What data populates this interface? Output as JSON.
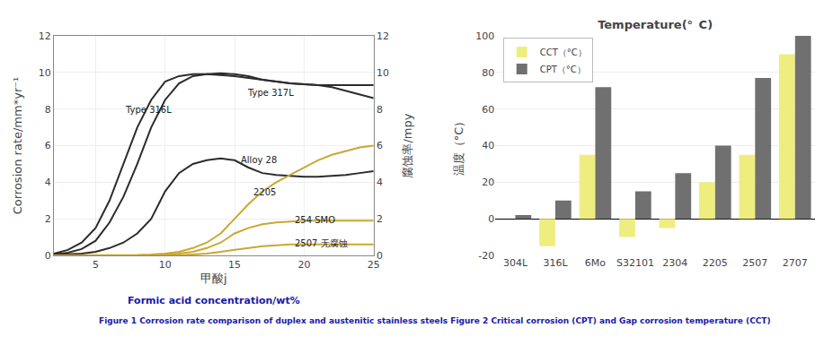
{
  "chart_data": [
    {
      "type": "line",
      "xlabel": "甲酸j",
      "caption": "Formic acid concentration/wt%",
      "ylabel": "Corrosion rate/mm*yr⁻¹",
      "y2label": "腐蚀率/mpy",
      "x": [
        2,
        3,
        4,
        5,
        6,
        7,
        8,
        9,
        10,
        11,
        12,
        13,
        14,
        15,
        16,
        17,
        18,
        19,
        20,
        21,
        22,
        23,
        24,
        25
      ],
      "xlim": [
        2,
        25
      ],
      "xticks": [
        5,
        10,
        15,
        20,
        25
      ],
      "ylim": [
        0,
        12
      ],
      "yticks": [
        0,
        2,
        4,
        6,
        8,
        10,
        12
      ],
      "y2lim": [
        0,
        12
      ],
      "y2ticks": [
        0,
        2,
        4,
        6,
        8,
        10,
        12
      ],
      "grid": true,
      "series": [
        {
          "color": "#2c2c2c",
          "values": [
            0.1,
            0.3,
            0.7,
            1.5,
            3.0,
            5.0,
            7.0,
            8.5,
            9.5,
            9.8,
            9.9,
            9.9,
            9.85,
            9.8,
            9.7,
            9.6,
            9.5,
            9.4,
            9.35,
            9.3,
            9.3,
            9.3,
            9.3,
            9.3
          ]
        },
        {
          "color": "#2c2c2c",
          "values": [
            0.05,
            0.15,
            0.35,
            0.8,
            1.8,
            3.2,
            5.0,
            7.0,
            8.5,
            9.4,
            9.8,
            9.9,
            9.95,
            9.9,
            9.8,
            9.6,
            9.5,
            9.4,
            9.35,
            9.3,
            9.2,
            9.0,
            8.8,
            8.6
          ]
        },
        {
          "color": "#2c2c2c",
          "values": [
            0.02,
            0.05,
            0.1,
            0.2,
            0.4,
            0.7,
            1.2,
            2.0,
            3.5,
            4.5,
            5.0,
            5.2,
            5.3,
            5.2,
            4.8,
            4.5,
            4.4,
            4.35,
            4.3,
            4.3,
            4.35,
            4.4,
            4.5,
            4.6
          ]
        },
        {
          "color": "#c8a832",
          "values": [
            0.0,
            0.0,
            0.0,
            0.0,
            0.0,
            0.0,
            0.02,
            0.05,
            0.1,
            0.2,
            0.4,
            0.7,
            1.2,
            2.0,
            2.8,
            3.5,
            4.0,
            4.4,
            4.8,
            5.2,
            5.5,
            5.7,
            5.9,
            6.0
          ]
        },
        {
          "color": "#c8a832",
          "values": [
            0.0,
            0.0,
            0.0,
            0.0,
            0.0,
            0.0,
            0.0,
            0.0,
            0.05,
            0.1,
            0.2,
            0.4,
            0.7,
            1.2,
            1.5,
            1.7,
            1.8,
            1.85,
            1.9,
            1.9,
            1.9,
            1.9,
            1.9,
            1.9
          ]
        },
        {
          "color": "#c8a832",
          "values": [
            0.0,
            0.0,
            0.0,
            0.0,
            0.0,
            0.0,
            0.0,
            0.0,
            0.0,
            0.0,
            0.05,
            0.1,
            0.2,
            0.3,
            0.4,
            0.5,
            0.55,
            0.6,
            0.6,
            0.6,
            0.6,
            0.6,
            0.6,
            0.6
          ]
        }
      ],
      "annotations": [
        {
          "text": "Type 316L",
          "x": 7.0,
          "y": 7.6
        },
        {
          "text": "Type 317L",
          "x": 15.8,
          "y": 8.5
        },
        {
          "text": "Alloy 28",
          "x": 15.3,
          "y": 4.85
        },
        {
          "text": "2205",
          "x": 16.2,
          "y": 3.1
        },
        {
          "text": "254 SMO",
          "x": 19.2,
          "y": 1.55
        },
        {
          "text": "2507 无腐蚀",
          "x": 19.2,
          "y": 0.28
        }
      ]
    },
    {
      "type": "bar",
      "title": "Temperature(° C)",
      "ylabel": "温度（°C）",
      "categories": [
        "304L",
        "316L",
        "6Mo",
        "S32101",
        "2304",
        "2205",
        "2507",
        "2707"
      ],
      "series": [
        {
          "name": "CCT（°C）",
          "color": "#eeee80",
          "values": [
            null,
            -15,
            35,
            -10,
            -5,
            20,
            35,
            90
          ]
        },
        {
          "name": "CPT（°C）",
          "color": "#707070",
          "values": [
            2,
            10,
            72,
            15,
            25,
            40,
            77,
            100
          ]
        }
      ],
      "ylim": [
        -20,
        100
      ],
      "yticks": [
        -20,
        0,
        20,
        40,
        60,
        80,
        100
      ],
      "grid": "y",
      "legend": "upper left"
    }
  ],
  "footer": "Figure 1 Corrosion rate comparison of duplex and austenitic stainless steels Figure 2 Critical corrosion (CPT) and Gap corrosion temperature (CCT)"
}
